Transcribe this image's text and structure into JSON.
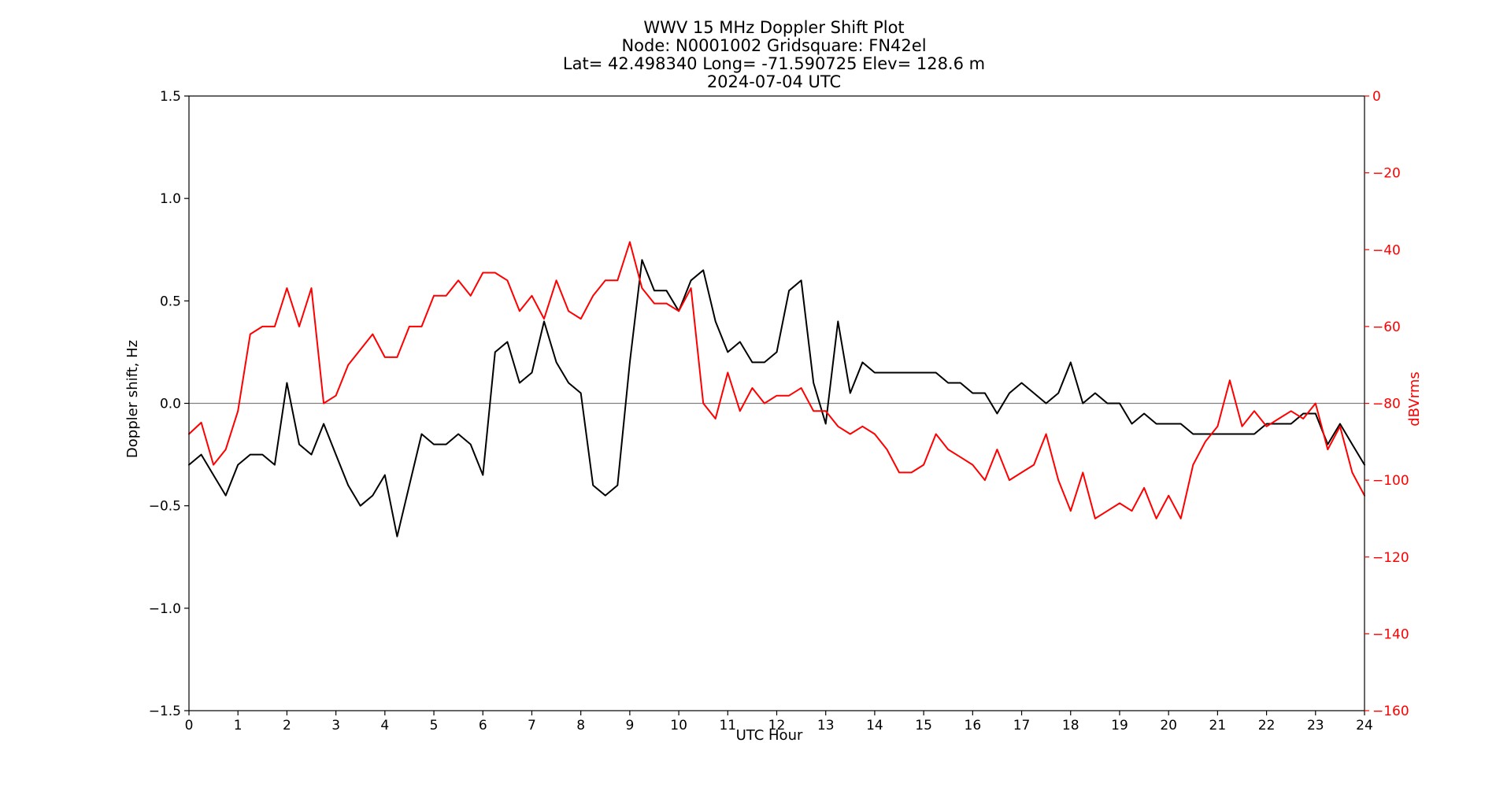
{
  "chart_data": {
    "type": "line",
    "title_lines": [
      "WWV 15 MHz Doppler Shift Plot",
      "Node:  N0001002     Gridsquare:  FN42el",
      "Lat= 42.498340    Long= -71.590725    Elev= 128.6 m",
      "2024-07-04  UTC"
    ],
    "xlabel": "UTC Hour",
    "ylabel": "Doppler shift, Hz",
    "ylabel_right": "dBVrms",
    "xlim": [
      0,
      24
    ],
    "ylim": [
      -1.5,
      1.5
    ],
    "ylim_right": [
      -160,
      0
    ],
    "x_ticks": [
      "0",
      "1",
      "2",
      "3",
      "4",
      "5",
      "6",
      "7",
      "8",
      "9",
      "10",
      "11",
      "12",
      "13",
      "14",
      "15",
      "16",
      "17",
      "18",
      "19",
      "20",
      "21",
      "22",
      "23",
      "24"
    ],
    "y_ticks": [
      "−1.5",
      "−1.0",
      "−0.5",
      "0.0",
      "0.5",
      "1.0",
      "1.5"
    ],
    "y_ticks_right": [
      "−160",
      "−140",
      "−120",
      "−100",
      "−80",
      "−60",
      "−40",
      "−20",
      "0"
    ],
    "zero_line": 0,
    "grid": false,
    "colors": {
      "doppler": "#000000",
      "power": "#ff0000",
      "zero_line": "#808080",
      "axis": "#000000"
    },
    "series": [
      {
        "axis": "left",
        "x": [
          0,
          0.25,
          0.5,
          0.75,
          1,
          1.25,
          1.5,
          1.75,
          2,
          2.25,
          2.5,
          2.75,
          3,
          3.25,
          3.5,
          3.75,
          4,
          4.25,
          4.5,
          4.75,
          5,
          5.25,
          5.5,
          5.75,
          6,
          6.25,
          6.5,
          6.75,
          7,
          7.25,
          7.5,
          7.75,
          8,
          8.25,
          8.5,
          8.75,
          9,
          9.25,
          9.5,
          9.75,
          10,
          10.25,
          10.5,
          10.75,
          11,
          11.25,
          11.5,
          11.75,
          12,
          12.25,
          12.5,
          12.75,
          13,
          13.25,
          13.5,
          13.75,
          14,
          14.25,
          14.5,
          14.75,
          15,
          15.25,
          15.5,
          15.75,
          16,
          16.25,
          16.5,
          16.75,
          17,
          17.25,
          17.5,
          17.75,
          18,
          18.25,
          18.5,
          18.75,
          19,
          19.25,
          19.5,
          19.75,
          20,
          20.25,
          20.5,
          20.75,
          21,
          21.25,
          21.5,
          21.75,
          22,
          22.25,
          22.5,
          22.75,
          23,
          23.25,
          23.5,
          23.75,
          24
        ],
        "values": [
          -0.3,
          -0.25,
          -0.35,
          -0.45,
          -0.3,
          -0.25,
          -0.25,
          -0.3,
          0.1,
          -0.2,
          -0.25,
          -0.1,
          -0.25,
          -0.4,
          -0.5,
          -0.45,
          -0.35,
          -0.65,
          -0.4,
          -0.15,
          -0.2,
          -0.2,
          -0.15,
          -0.2,
          -0.35,
          0.25,
          0.3,
          0.1,
          0.15,
          0.4,
          0.2,
          0.1,
          0.05,
          -0.4,
          -0.45,
          -0.4,
          0.2,
          0.7,
          0.55,
          0.55,
          0.45,
          0.6,
          0.65,
          0.4,
          0.25,
          0.3,
          0.2,
          0.2,
          0.25,
          0.55,
          0.6,
          0.1,
          -0.1,
          0.4,
          0.05,
          0.2,
          0.15,
          0.15,
          0.15,
          0.15,
          0.15,
          0.15,
          0.1,
          0.1,
          0.05,
          0.05,
          -0.05,
          0.05,
          0.1,
          0.05,
          0.0,
          0.05,
          0.2,
          0.0,
          0.05,
          0.0,
          0.0,
          -0.1,
          -0.05,
          -0.1,
          -0.1,
          -0.1,
          -0.15,
          -0.15,
          -0.15,
          -0.15,
          -0.15,
          -0.15,
          -0.1,
          -0.1,
          -0.1,
          -0.05,
          -0.05,
          -0.2,
          -0.1,
          -0.2,
          -0.3
        ]
      },
      {
        "axis": "right",
        "x": [
          0,
          0.25,
          0.5,
          0.75,
          1,
          1.25,
          1.5,
          1.75,
          2,
          2.25,
          2.5,
          2.75,
          3,
          3.25,
          3.5,
          3.75,
          4,
          4.25,
          4.5,
          4.75,
          5,
          5.25,
          5.5,
          5.75,
          6,
          6.25,
          6.5,
          6.75,
          7,
          7.25,
          7.5,
          7.75,
          8,
          8.25,
          8.5,
          8.75,
          9,
          9.25,
          9.5,
          9.75,
          10,
          10.25,
          10.5,
          10.75,
          11,
          11.25,
          11.5,
          11.75,
          12,
          12.25,
          12.5,
          12.75,
          13,
          13.25,
          13.5,
          13.75,
          14,
          14.25,
          14.5,
          14.75,
          15,
          15.25,
          15.5,
          15.75,
          16,
          16.25,
          16.5,
          16.75,
          17,
          17.25,
          17.5,
          17.75,
          18,
          18.25,
          18.5,
          18.75,
          19,
          19.25,
          19.5,
          19.75,
          20,
          20.25,
          20.5,
          20.75,
          21,
          21.25,
          21.5,
          21.75,
          22,
          22.25,
          22.5,
          22.75,
          23,
          23.25,
          23.5,
          23.75,
          24
        ],
        "values": [
          -88,
          -85,
          -96,
          -92,
          -82,
          -62,
          -60,
          -60,
          -50,
          -60,
          -50,
          -80,
          -78,
          -70,
          -66,
          -62,
          -68,
          -68,
          -60,
          -60,
          -52,
          -52,
          -48,
          -52,
          -46,
          -46,
          -48,
          -56,
          -52,
          -58,
          -48,
          -56,
          -58,
          -52,
          -48,
          -48,
          -38,
          -50,
          -54,
          -54,
          -56,
          -50,
          -80,
          -84,
          -72,
          -82,
          -76,
          -80,
          -78,
          -78,
          -76,
          -82,
          -82,
          -86,
          -88,
          -86,
          -88,
          -92,
          -98,
          -98,
          -96,
          -88,
          -92,
          -94,
          -96,
          -100,
          -92,
          -100,
          -98,
          -96,
          -88,
          -100,
          -108,
          -98,
          -110,
          -108,
          -106,
          -108,
          -102,
          -110,
          -104,
          -110,
          -96,
          -90,
          -86,
          -74,
          -86,
          -82,
          -86,
          -84,
          -82,
          -84,
          -80,
          -92,
          -86,
          -98,
          -104
        ]
      }
    ]
  }
}
